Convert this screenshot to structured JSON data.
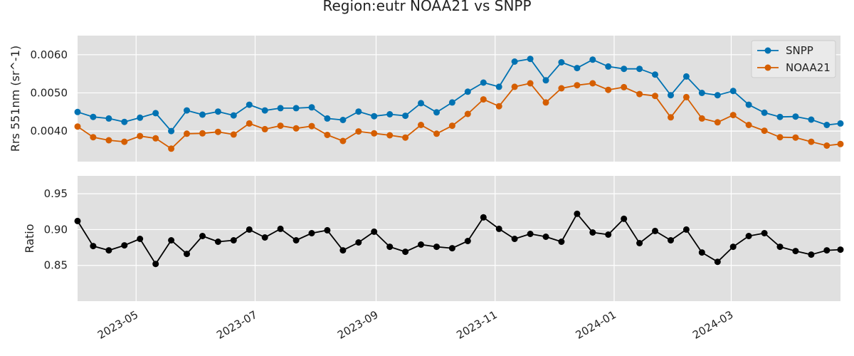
{
  "chart_data": {
    "type": "line",
    "title": "Region:eutr NOAA21 vs SNPP",
    "x_axis": {
      "type": "date",
      "range": [
        "2023-04-01",
        "2024-04-26"
      ],
      "tick_labels": [
        "2023-05",
        "2023-07",
        "2023-09",
        "2023-11",
        "2024-01",
        "2024-03"
      ],
      "tick_dates": [
        "2023-05-01",
        "2023-07-01",
        "2023-09-01",
        "2023-11-01",
        "2024-01-01",
        "2024-03-01"
      ]
    },
    "x": [
      "2023-04-01",
      "2023-04-09",
      "2023-04-17",
      "2023-04-25",
      "2023-05-03",
      "2023-05-11",
      "2023-05-19",
      "2023-05-27",
      "2023-06-04",
      "2023-06-12",
      "2023-06-20",
      "2023-06-28",
      "2023-07-06",
      "2023-07-14",
      "2023-07-22",
      "2023-07-30",
      "2023-08-07",
      "2023-08-15",
      "2023-08-23",
      "2023-08-31",
      "2023-09-08",
      "2023-09-16",
      "2023-09-24",
      "2023-10-02",
      "2023-10-10",
      "2023-10-18",
      "2023-10-26",
      "2023-11-03",
      "2023-11-11",
      "2023-11-19",
      "2023-11-27",
      "2023-12-05",
      "2023-12-13",
      "2023-12-21",
      "2023-12-29",
      "2024-01-06",
      "2024-01-14",
      "2024-01-22",
      "2024-01-30",
      "2024-02-07",
      "2024-02-15",
      "2024-02-23",
      "2024-03-02",
      "2024-03-10",
      "2024-03-18",
      "2024-03-26",
      "2024-04-03",
      "2024-04-11",
      "2024-04-19",
      "2024-04-26"
    ],
    "panels": [
      {
        "ylabel": "Rrs 551nm (sr^-1)",
        "ylim": [
          0.0032,
          0.0065
        ],
        "yticks": [
          0.004,
          0.005,
          0.006
        ],
        "ytick_labels": [
          "0.0040",
          "0.0050",
          "0.0060"
        ],
        "legend": "top-right",
        "series": [
          {
            "name": "SNPP",
            "color": "#0072b2",
            "values": [
              0.0045,
              0.00437,
              0.00433,
              0.00424,
              0.00435,
              0.00447,
              0.004,
              0.00454,
              0.00443,
              0.00451,
              0.00441,
              0.00469,
              0.00454,
              0.0046,
              0.0046,
              0.00462,
              0.00433,
              0.00429,
              0.00451,
              0.00439,
              0.00444,
              0.0044,
              0.00473,
              0.00449,
              0.00475,
              0.00503,
              0.00527,
              0.00516,
              0.00582,
              0.00589,
              0.00533,
              0.0058,
              0.00565,
              0.00587,
              0.00569,
              0.00563,
              0.00563,
              0.00548,
              0.00494,
              0.00543,
              0.005,
              0.00494,
              0.00505,
              0.00469,
              0.00448,
              0.00437,
              0.00438,
              0.0043,
              0.00416,
              0.0042
            ]
          },
          {
            "name": "NOAA21",
            "color": "#d55e00",
            "values": [
              0.00412,
              0.00384,
              0.00376,
              0.00372,
              0.00387,
              0.00381,
              0.00354,
              0.00393,
              0.00394,
              0.00398,
              0.00391,
              0.0042,
              0.00405,
              0.00414,
              0.00407,
              0.00413,
              0.0039,
              0.00374,
              0.00399,
              0.00394,
              0.00389,
              0.00383,
              0.00416,
              0.00393,
              0.00414,
              0.00445,
              0.00483,
              0.00465,
              0.00516,
              0.00525,
              0.00475,
              0.00512,
              0.0052,
              0.00525,
              0.00508,
              0.00515,
              0.00497,
              0.00492,
              0.00436,
              0.00489,
              0.00433,
              0.00423,
              0.00442,
              0.00416,
              0.00401,
              0.00384,
              0.00383,
              0.00372,
              0.00362,
              0.00366
            ]
          }
        ]
      },
      {
        "ylabel": "Ratio",
        "ylim": [
          0.8,
          0.975
        ],
        "yticks": [
          0.85,
          0.9,
          0.95
        ],
        "ytick_labels": [
          "0.85",
          "0.90",
          "0.95"
        ],
        "series": [
          {
            "name": "",
            "color": "#000000",
            "values": [
              0.912,
              0.877,
              0.871,
              0.878,
              0.887,
              0.852,
              0.885,
              0.866,
              0.891,
              0.883,
              0.885,
              0.9,
              0.889,
              0.901,
              0.885,
              0.895,
              0.899,
              0.871,
              0.882,
              0.897,
              0.876,
              0.869,
              0.879,
              0.876,
              0.874,
              0.884,
              0.917,
              0.901,
              0.887,
              0.894,
              0.89,
              0.883,
              0.922,
              0.896,
              0.893,
              0.915,
              0.881,
              0.898,
              0.885,
              0.9,
              0.868,
              0.855,
              0.876,
              0.891,
              0.895,
              0.876,
              0.87,
              0.865,
              0.871,
              0.872
            ]
          }
        ]
      }
    ]
  }
}
